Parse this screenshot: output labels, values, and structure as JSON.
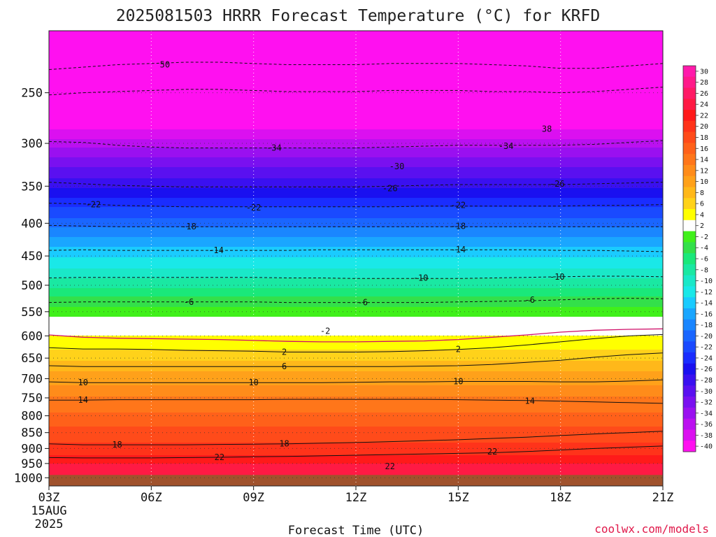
{
  "chart_data": {
    "type": "heatmap",
    "title": "2025081503 HRRR Forecast Temperature (°C) for KRFD",
    "xlabel": "Forecast Time (UTC)",
    "credit": "coolwx.com/models",
    "x_ticks": [
      "03Z",
      "06Z",
      "09Z",
      "12Z",
      "15Z",
      "18Z",
      "21Z"
    ],
    "x_date_lines": [
      "15AUG",
      "2025"
    ],
    "x_hours": [
      3,
      4,
      5,
      6,
      7,
      8,
      9,
      10,
      11,
      12,
      13,
      14,
      15,
      16,
      17,
      18,
      19,
      20,
      21
    ],
    "xlim": [
      3,
      21
    ],
    "y_ticks": [
      250,
      300,
      350,
      400,
      450,
      500,
      550,
      600,
      650,
      700,
      750,
      800,
      850,
      900,
      950,
      1000
    ],
    "ylim": [
      1030,
      200
    ],
    "y_scale": "log",
    "y_unit": "hPa",
    "grid": true,
    "ground_level_hPa": 990,
    "colorbar_ticks": [
      "30",
      "28",
      "26",
      "24",
      "22",
      "20",
      "18",
      "16",
      "14",
      "12",
      "10",
      "8",
      "6",
      "4",
      "2",
      "-2",
      "-4",
      "-6",
      "-8",
      "-10",
      "-12",
      "-14",
      "-16",
      "-18",
      "-20",
      "-22",
      "-24",
      "-26",
      "-28",
      "-30",
      "-32",
      "-34",
      "-36",
      "-38",
      "-40"
    ],
    "colorbar_colors": [
      "#ff1aab",
      "#ff1a8a",
      "#ff1a66",
      "#ff1a44",
      "#ff1a1a",
      "#ff331a",
      "#ff4b1a",
      "#ff611a",
      "#ff761a",
      "#ff8c1a",
      "#ffa11a",
      "#ffb81a",
      "#ffd21a",
      "#ffff00",
      "#ffffff",
      "#40f01a",
      "#33e04a",
      "#1ae87a",
      "#1ae8a2",
      "#1ae8c8",
      "#1ae8e8",
      "#1acbff",
      "#1aa6ff",
      "#1a86ff",
      "#1a66ff",
      "#1a4aff",
      "#1a2dff",
      "#1a10f0",
      "#3a10f0",
      "#5a10f0",
      "#7a10f0",
      "#9a10f0",
      "#bb10f0",
      "#db10f0",
      "#ff10f0"
    ],
    "ground_color": "#a0522d",
    "series": [
      {
        "values": [
          230,
          228,
          226,
          225,
          224,
          224,
          225,
          226,
          226,
          226,
          225,
          225,
          225,
          226,
          227,
          229,
          229,
          227,
          225
        ]
      },
      {
        "values": [
          252,
          250,
          249,
          248,
          247,
          247,
          248,
          249,
          249,
          249,
          248,
          248,
          248,
          249,
          249,
          250,
          249,
          247,
          245
        ]
      },
      {
        "values": [
          298,
          299,
          302,
          304,
          305,
          305,
          305,
          305,
          305,
          305,
          304,
          303,
          302,
          302,
          302,
          302,
          301,
          299,
          297
        ]
      },
      {
        "values": [
          345,
          347,
          349,
          350,
          351,
          351,
          351,
          351,
          351,
          351,
          350,
          349,
          348,
          348,
          348,
          348,
          347,
          346,
          345
        ]
      },
      {
        "values": [
          372,
          373,
          375,
          376,
          377,
          377,
          377,
          377,
          377,
          377,
          377,
          376,
          376,
          376,
          376,
          376,
          375,
          375,
          374
        ]
      },
      {
        "values": [
          403,
          404,
          405,
          405,
          405,
          405,
          405,
          405,
          405,
          405,
          405,
          405,
          405,
          405,
          405,
          405,
          405,
          405,
          405
        ]
      },
      {
        "values": [
          441,
          440,
          441,
          441,
          441,
          441,
          441,
          441,
          440,
          440,
          440,
          440,
          440,
          440,
          440,
          441,
          441,
          442,
          443
        ]
      },
      {
        "values": [
          487,
          486,
          486,
          486,
          486,
          486,
          486,
          487,
          487,
          488,
          488,
          488,
          488,
          487,
          486,
          485,
          484,
          484,
          485
        ]
      },
      {
        "values": [
          532,
          531,
          531,
          531,
          531,
          531,
          531,
          532,
          532,
          532,
          532,
          532,
          531,
          530,
          529,
          527,
          525,
          524,
          525
        ]
      },
      {
        "values": [
          598,
          603,
          605,
          606,
          607,
          608,
          610,
          612,
          613,
          613,
          612,
          611,
          608,
          603,
          598,
          592,
          588,
          586,
          585
        ]
      },
      {
        "values": [
          626,
          629,
          629,
          630,
          632,
          633,
          634,
          636,
          636,
          636,
          635,
          633,
          630,
          626,
          620,
          613,
          606,
          600,
          597
        ]
      },
      {
        "values": [
          668,
          670,
          670,
          670,
          670,
          670,
          670,
          670,
          670,
          670,
          670,
          669,
          668,
          665,
          660,
          655,
          648,
          642,
          638
        ]
      },
      {
        "values": [
          708,
          710,
          710,
          710,
          710,
          710,
          710,
          710,
          710,
          709,
          708,
          708,
          707,
          707,
          707,
          708,
          708,
          706,
          703
        ]
      },
      {
        "values": [
          756,
          756,
          755,
          755,
          755,
          755,
          755,
          754,
          754,
          754,
          754,
          754,
          755,
          756,
          757,
          759,
          761,
          763,
          765
        ]
      },
      {
        "values": [
          885,
          888,
          888,
          888,
          888,
          887,
          886,
          885,
          883,
          881,
          878,
          875,
          872,
          868,
          864,
          859,
          854,
          850,
          846
        ]
      },
      {
        "values": [
          930,
          931,
          931,
          931,
          930,
          929,
          927,
          926,
          924,
          922,
          920,
          918,
          916,
          914,
          910,
          905,
          900,
          896,
          892
        ]
      }
    ],
    "contour_labels": [
      {
        "text": "50",
        "x": 6.4,
        "p": 226
      },
      {
        "text": "38",
        "x": 17.6,
        "p": 285
      },
      {
        "text": "-34",
        "x": 9.6,
        "p": 305
      },
      {
        "text": "-34",
        "x": 16.4,
        "p": 303
      },
      {
        "text": "-30",
        "x": 13.2,
        "p": 326
      },
      {
        "text": "-26",
        "x": 13.0,
        "p": 353
      },
      {
        "text": "-26",
        "x": 17.9,
        "p": 347
      },
      {
        "text": "-22",
        "x": 4.3,
        "p": 374
      },
      {
        "text": "-22",
        "x": 9.0,
        "p": 378
      },
      {
        "text": "-22",
        "x": 15.0,
        "p": 375
      },
      {
        "text": "-18",
        "x": 7.1,
        "p": 405
      },
      {
        "text": "-18",
        "x": 15.0,
        "p": 404
      },
      {
        "text": "-14",
        "x": 7.9,
        "p": 441
      },
      {
        "text": "-14",
        "x": 15.0,
        "p": 440
      },
      {
        "text": "-10",
        "x": 13.9,
        "p": 487
      },
      {
        "text": "-10",
        "x": 17.9,
        "p": 485
      },
      {
        "text": "-6",
        "x": 7.1,
        "p": 531
      },
      {
        "text": "-6",
        "x": 12.2,
        "p": 532
      },
      {
        "text": "-6",
        "x": 17.1,
        "p": 527
      },
      {
        "text": "-2",
        "x": 11.1,
        "p": 590
      },
      {
        "text": "2",
        "x": 9.9,
        "p": 636
      },
      {
        "text": "2",
        "x": 15.0,
        "p": 630
      },
      {
        "text": "6",
        "x": 9.9,
        "p": 670
      },
      {
        "text": "10",
        "x": 4.0,
        "p": 710
      },
      {
        "text": "10",
        "x": 9.0,
        "p": 710
      },
      {
        "text": "10",
        "x": 15.0,
        "p": 707
      },
      {
        "text": "14",
        "x": 4.0,
        "p": 756
      },
      {
        "text": "14",
        "x": 17.1,
        "p": 759
      },
      {
        "text": "18",
        "x": 5.0,
        "p": 888
      },
      {
        "text": "18",
        "x": 9.9,
        "p": 885
      },
      {
        "text": "22",
        "x": 8.0,
        "p": 929
      },
      {
        "text": "22",
        "x": 16.0,
        "p": 910
      },
      {
        "text": "22",
        "x": 13.0,
        "p": 960
      }
    ]
  }
}
